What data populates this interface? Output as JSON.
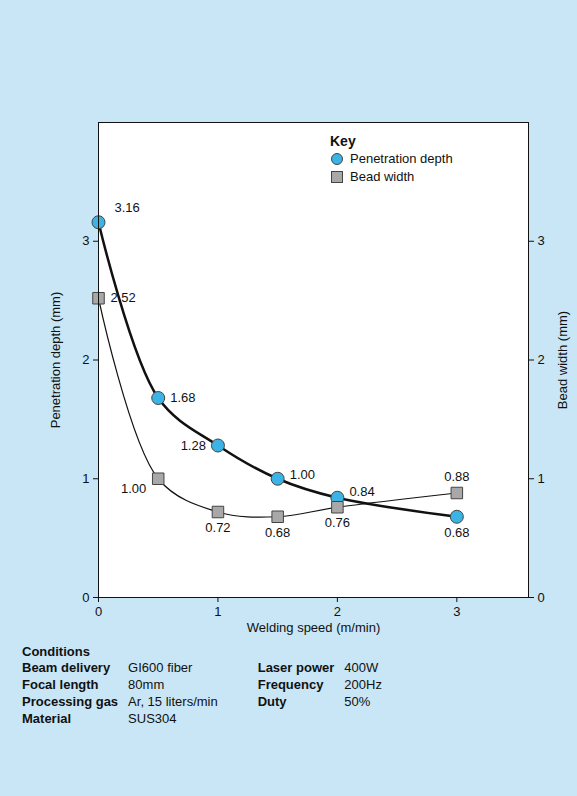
{
  "chart_data": {
    "type": "line",
    "x": [
      0,
      0.5,
      1,
      1.5,
      2,
      3
    ],
    "xlabel": "Welding speed (m/min)",
    "ylabel": "Penetration depth (mm)",
    "y2label": "Bead width (mm)",
    "xlim": [
      0,
      3.6
    ],
    "xticks": [
      0,
      1,
      2,
      3
    ],
    "ylim": [
      0,
      4
    ],
    "yticks": [
      0,
      1,
      2,
      3
    ],
    "y2lim": [
      0,
      4
    ],
    "y2ticks": [
      0,
      1,
      2,
      3
    ],
    "grid": false,
    "legend": "top-right",
    "legend_title": "Key",
    "data_labels": true,
    "series": [
      {
        "name": "Penetration depth",
        "color": "#3bb3e4",
        "marker": "circle",
        "line_style": "solid",
        "values": [
          3.16,
          1.68,
          1.28,
          1.0,
          0.84,
          0.68
        ],
        "value_labels": [
          "3.16",
          "1.68",
          "1.28",
          "1.00",
          "0.84",
          "0.68"
        ]
      },
      {
        "name": "Bead width",
        "color": "#a8a8a8",
        "marker": "square",
        "line_style": "solid",
        "axis": "y2",
        "values": [
          2.52,
          1.0,
          0.72,
          0.68,
          0.76,
          0.88
        ],
        "value_labels": [
          "2.52",
          "1.00",
          "0.72",
          "0.68",
          "0.76",
          "0.88"
        ]
      }
    ]
  },
  "conditions": {
    "title": "Conditions",
    "left": [
      [
        "Beam delivery",
        "GI600 fiber"
      ],
      [
        "Focal length",
        "80mm"
      ],
      [
        "Processing gas",
        "Ar, 15 liters/min"
      ],
      [
        "Material",
        "SUS304"
      ]
    ],
    "right": [
      [
        "Laser power",
        "400W"
      ],
      [
        "Frequency",
        "200Hz"
      ],
      [
        "Duty",
        "50%"
      ]
    ]
  }
}
